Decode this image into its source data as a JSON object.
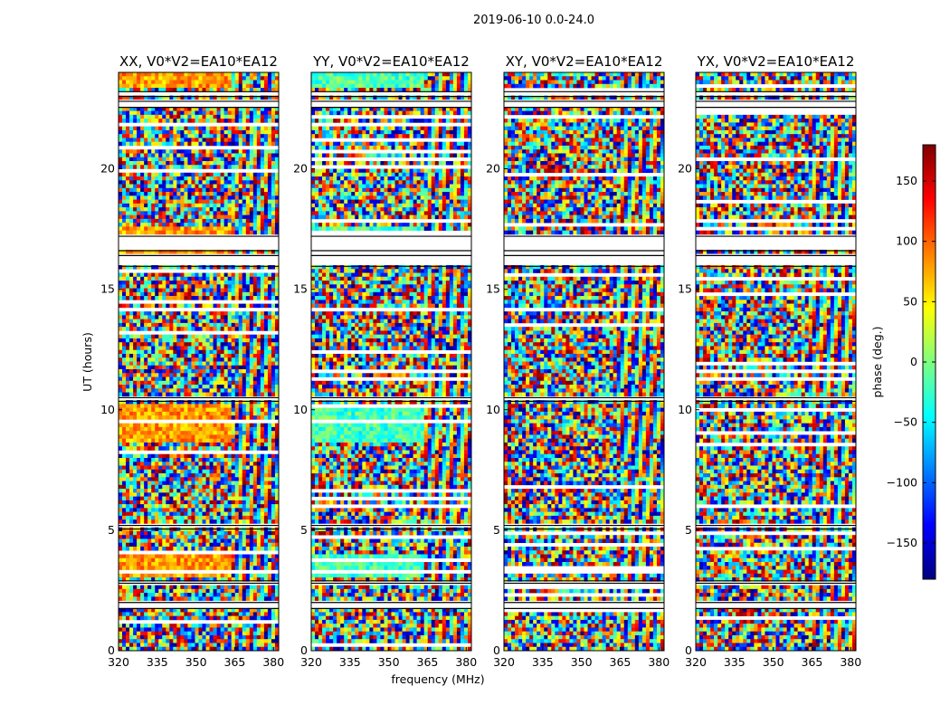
{
  "chart_data": {
    "type": "heatmap",
    "suptitle": "2019-06-10 0.0-24.0",
    "xlabel": "frequency (MHz)",
    "ylabel": "UT (hours)",
    "xlim": [
      320,
      382
    ],
    "ylim": [
      0,
      24
    ],
    "xticks": [
      320,
      335,
      350,
      365,
      380
    ],
    "yticks": [
      0,
      5,
      10,
      15,
      20
    ],
    "colorbar": {
      "label": "phase (deg.)",
      "range": [
        -180,
        180
      ],
      "ticks": [
        150,
        100,
        50,
        0,
        -50,
        -100,
        -150
      ],
      "colormap": "jet",
      "colors": [
        "#00007f",
        "#0000ff",
        "#007fff",
        "#00ffff",
        "#7fff7f",
        "#ffff00",
        "#ff7f00",
        "#ff0000",
        "#7f0000"
      ]
    },
    "panels": [
      {
        "title": "XX, V0*V2=EA10*EA12",
        "pol": "XX",
        "mean_phase_deg": 80
      },
      {
        "title": "YY, V0*V2=EA10*EA12",
        "pol": "YY",
        "mean_phase_deg": -20
      },
      {
        "title": "XY, V0*V2=EA10*EA12",
        "pol": "XY",
        "mean_phase_deg": null
      },
      {
        "title": "YX, V0*V2=EA10*EA12",
        "pol": "YX",
        "mean_phase_deg": null
      }
    ],
    "flagged_ut_ranges": [
      [
        1.75,
        2.0
      ],
      [
        2.8,
        2.9
      ],
      [
        5.05,
        5.2
      ],
      [
        10.35,
        10.5
      ],
      [
        15.95,
        16.4
      ],
      [
        16.6,
        17.2
      ],
      [
        22.55,
        22.8
      ],
      [
        23.0,
        23.2
      ]
    ],
    "coherent_freq_start_mhz": 363
  }
}
